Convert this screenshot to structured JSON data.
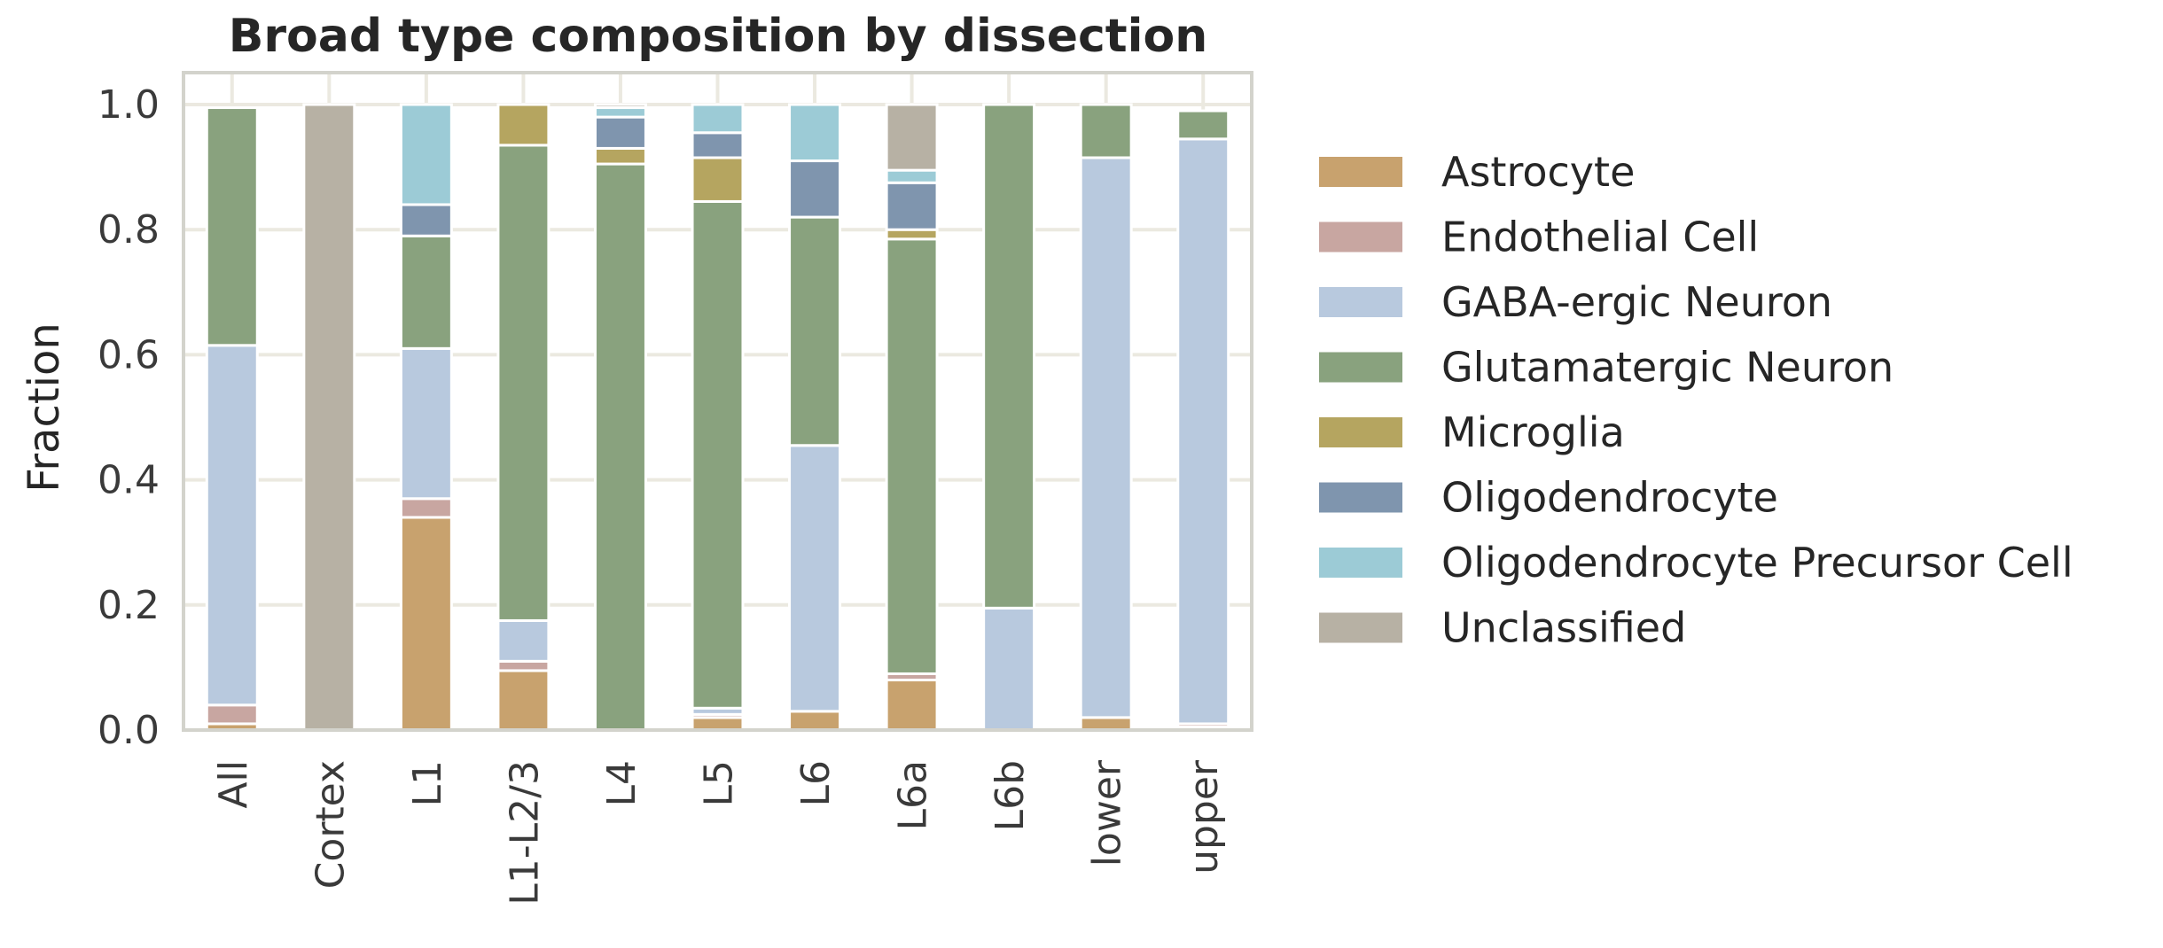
{
  "chart_data": {
    "type": "bar",
    "stacked": true,
    "title": "Broad type composition by dissection",
    "xlabel": "",
    "ylabel": "Fraction",
    "ylim": [
      0,
      1.05
    ],
    "yticks": [
      "0.0",
      "0.2",
      "0.4",
      "0.6",
      "0.8",
      "1.0"
    ],
    "grid": true,
    "legend_position": "right",
    "categories": [
      "All",
      "Cortex",
      "L1",
      "L1-L2/3",
      "L4",
      "L5",
      "L6",
      "L6a",
      "L6b",
      "lower",
      "upper"
    ],
    "series": [
      {
        "name": "Astrocyte",
        "color": "#c8a26e",
        "values": [
          0.01,
          0.0,
          0.34,
          0.095,
          0.0,
          0.02,
          0.03,
          0.08,
          0.0,
          0.02,
          0.005
        ]
      },
      {
        "name": "Endothelial Cell",
        "color": "#c8a6a1",
        "values": [
          0.03,
          0.0,
          0.03,
          0.015,
          0.0,
          0.005,
          0.0,
          0.01,
          0.0,
          0.0,
          0.005
        ]
      },
      {
        "name": "GABA-ergic Neuron",
        "color": "#b8c9de",
        "values": [
          0.575,
          0.0,
          0.24,
          0.065,
          0.0,
          0.01,
          0.425,
          0.0,
          0.195,
          0.895,
          0.935
        ]
      },
      {
        "name": "Glutamatergic Neuron",
        "color": "#89a27e",
        "values": [
          0.38,
          0.0,
          0.18,
          0.76,
          0.905,
          0.81,
          0.365,
          0.695,
          0.805,
          0.085,
          0.045
        ]
      },
      {
        "name": "Microglia",
        "color": "#b5a560",
        "values": [
          0.0,
          0.0,
          0.0,
          0.065,
          0.025,
          0.07,
          0.0,
          0.015,
          0.0,
          0.0,
          0.0
        ]
      },
      {
        "name": "Oligodendrocyte",
        "color": "#7f95ae",
        "values": [
          0.0,
          0.0,
          0.05,
          0.0,
          0.05,
          0.04,
          0.09,
          0.075,
          0.0,
          0.0,
          0.0
        ]
      },
      {
        "name": "Oligodendrocyte Precursor Cell",
        "color": "#9ccbd6",
        "values": [
          0.0,
          0.0,
          0.16,
          0.0,
          0.015,
          0.045,
          0.09,
          0.02,
          0.0,
          0.0,
          0.0
        ]
      },
      {
        "name": "Unclassified",
        "color": "#b7b1a4",
        "values": [
          0.0,
          1.0,
          0.0,
          0.0,
          0.005,
          0.0,
          0.0,
          0.105,
          0.0,
          0.0,
          0.0
        ]
      }
    ]
  }
}
